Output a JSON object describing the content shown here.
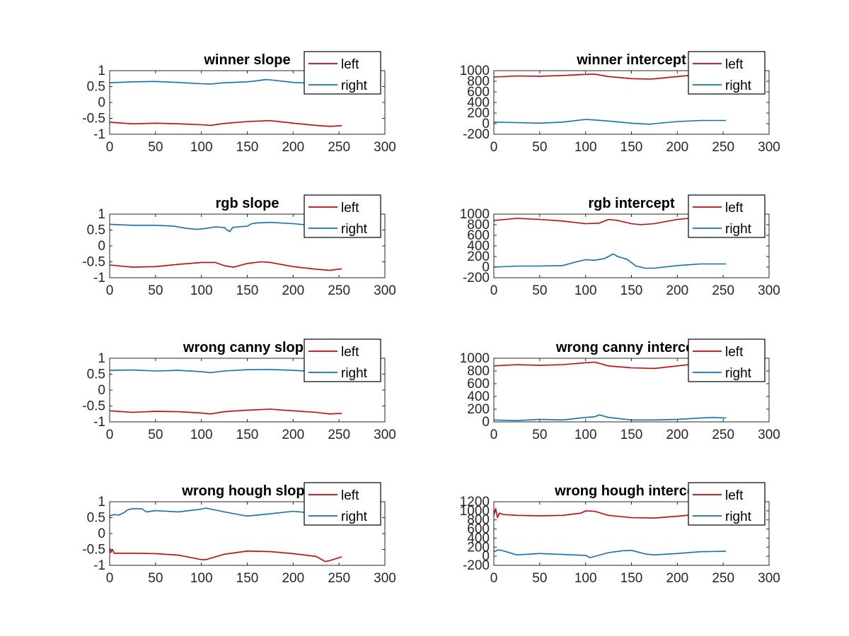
{
  "colors": {
    "left": "#d60000",
    "right": "#0a72bd",
    "axis": "#262626",
    "background": "#ffffff"
  },
  "chart_data": [
    {
      "type": "line",
      "title": "winner slope",
      "xlim": [
        0,
        300
      ],
      "ylim": [
        -1,
        1
      ],
      "xticks": [
        "0",
        "50",
        "100",
        "150",
        "200",
        "250",
        "300"
      ],
      "yticks": [
        "-1",
        "-0.5",
        "0",
        "0.5",
        "1"
      ],
      "legend": {
        "placement": "top-right",
        "entries": [
          "left",
          "right"
        ]
      },
      "grid": false,
      "series": [
        {
          "name": "left",
          "x": [
            0,
            25,
            50,
            75,
            100,
            110,
            125,
            150,
            175,
            200,
            225,
            240,
            253
          ],
          "y": [
            -0.62,
            -0.67,
            -0.65,
            -0.67,
            -0.7,
            -0.72,
            -0.66,
            -0.6,
            -0.57,
            -0.65,
            -0.72,
            -0.75,
            -0.73
          ]
        },
        {
          "name": "right",
          "x": [
            0,
            25,
            50,
            75,
            100,
            110,
            125,
            150,
            160,
            170,
            175,
            200,
            225,
            253
          ],
          "y": [
            0.62,
            0.65,
            0.66,
            0.63,
            0.59,
            0.58,
            0.62,
            0.65,
            0.68,
            0.72,
            0.71,
            0.63,
            0.6,
            0.62
          ]
        }
      ]
    },
    {
      "type": "line",
      "title": "winner intercept",
      "xlim": [
        0,
        300
      ],
      "ylim": [
        -200,
        1000
      ],
      "xticks": [
        "0",
        "50",
        "100",
        "150",
        "200",
        "250",
        "300"
      ],
      "yticks": [
        "-200",
        "0",
        "200",
        "400",
        "600",
        "800",
        "1000"
      ],
      "legend": {
        "placement": "top-right",
        "entries": [
          "left",
          "right"
        ]
      },
      "grid": false,
      "series": [
        {
          "name": "left",
          "x": [
            0,
            25,
            50,
            75,
            100,
            110,
            125,
            150,
            170,
            175,
            200,
            225,
            253
          ],
          "y": [
            880,
            900,
            895,
            910,
            930,
            935,
            890,
            850,
            840,
            845,
            890,
            930,
            940
          ]
        },
        {
          "name": "right",
          "x": [
            0,
            25,
            50,
            75,
            100,
            110,
            125,
            150,
            170,
            175,
            200,
            225,
            253
          ],
          "y": [
            30,
            20,
            10,
            30,
            80,
            70,
            50,
            10,
            -10,
            0,
            40,
            60,
            60
          ]
        }
      ]
    },
    {
      "type": "line",
      "title": "rgb slope",
      "xlim": [
        0,
        300
      ],
      "ylim": [
        -1,
        1
      ],
      "xticks": [
        "0",
        "50",
        "100",
        "150",
        "200",
        "250",
        "300"
      ],
      "yticks": [
        "-1",
        "-0.5",
        "0",
        "0.5",
        "1"
      ],
      "legend": {
        "placement": "top-right",
        "entries": [
          "left",
          "right"
        ]
      },
      "grid": false,
      "series": [
        {
          "name": "left",
          "x": [
            0,
            25,
            50,
            75,
            100,
            115,
            125,
            135,
            150,
            165,
            175,
            200,
            225,
            240,
            253
          ],
          "y": [
            -0.6,
            -0.67,
            -0.65,
            -0.58,
            -0.52,
            -0.52,
            -0.62,
            -0.67,
            -0.55,
            -0.5,
            -0.52,
            -0.65,
            -0.73,
            -0.77,
            -0.72
          ]
        },
        {
          "name": "right",
          "x": [
            0,
            25,
            50,
            70,
            85,
            95,
            105,
            115,
            125,
            128,
            131,
            134,
            140,
            150,
            155,
            160,
            175,
            200,
            225,
            253
          ],
          "y": [
            0.68,
            0.65,
            0.65,
            0.62,
            0.55,
            0.52,
            0.55,
            0.6,
            0.58,
            0.5,
            0.45,
            0.58,
            0.6,
            0.62,
            0.7,
            0.72,
            0.74,
            0.7,
            0.63,
            0.65
          ]
        }
      ]
    },
    {
      "type": "line",
      "title": "rgb intercept",
      "xlim": [
        0,
        300
      ],
      "ylim": [
        -200,
        1000
      ],
      "xticks": [
        "0",
        "50",
        "100",
        "150",
        "200",
        "250",
        "300"
      ],
      "yticks": [
        "-200",
        "0",
        "200",
        "400",
        "600",
        "800",
        "1000"
      ],
      "legend": {
        "placement": "top-right",
        "entries": [
          "left",
          "right"
        ]
      },
      "grid": false,
      "series": [
        {
          "name": "left",
          "x": [
            0,
            25,
            50,
            75,
            100,
            115,
            125,
            135,
            150,
            160,
            175,
            200,
            225,
            240,
            253
          ],
          "y": [
            880,
            920,
            900,
            870,
            820,
            830,
            900,
            880,
            820,
            800,
            820,
            900,
            940,
            950,
            930
          ]
        },
        {
          "name": "right",
          "x": [
            0,
            25,
            50,
            75,
            90,
            100,
            110,
            120,
            125,
            130,
            135,
            145,
            155,
            165,
            175,
            200,
            225,
            253
          ],
          "y": [
            0,
            20,
            20,
            30,
            100,
            140,
            130,
            160,
            200,
            250,
            200,
            150,
            20,
            -20,
            -20,
            30,
            60,
            60
          ]
        }
      ]
    },
    {
      "type": "line",
      "title": "wrong canny slope",
      "xlim": [
        0,
        300
      ],
      "ylim": [
        -1,
        1
      ],
      "xticks": [
        "0",
        "50",
        "100",
        "150",
        "200",
        "250",
        "300"
      ],
      "yticks": [
        "-1",
        "-0.5",
        "0",
        "0.5",
        "1"
      ],
      "legend": {
        "placement": "top-right",
        "entries": [
          "left",
          "right"
        ]
      },
      "grid": false,
      "series": [
        {
          "name": "left",
          "x": [
            0,
            25,
            50,
            75,
            100,
            110,
            125,
            150,
            175,
            200,
            225,
            240,
            253
          ],
          "y": [
            -0.65,
            -0.7,
            -0.67,
            -0.68,
            -0.72,
            -0.75,
            -0.68,
            -0.63,
            -0.6,
            -0.65,
            -0.7,
            -0.75,
            -0.73
          ]
        },
        {
          "name": "right",
          "x": [
            0,
            25,
            50,
            75,
            100,
            110,
            125,
            150,
            175,
            200,
            225,
            253
          ],
          "y": [
            0.62,
            0.63,
            0.6,
            0.62,
            0.58,
            0.55,
            0.6,
            0.64,
            0.65,
            0.62,
            0.58,
            0.58
          ]
        }
      ]
    },
    {
      "type": "line",
      "title": "wrong canny intercept",
      "xlim": [
        0,
        300
      ],
      "ylim": [
        0,
        1000
      ],
      "xticks": [
        "0",
        "50",
        "100",
        "150",
        "200",
        "250",
        "300"
      ],
      "yticks": [
        "0",
        "200",
        "400",
        "600",
        "800",
        "1000"
      ],
      "legend": {
        "placement": "top-right",
        "entries": [
          "left",
          "right"
        ]
      },
      "grid": false,
      "series": [
        {
          "name": "left",
          "x": [
            0,
            25,
            50,
            75,
            100,
            110,
            125,
            150,
            175,
            200,
            225,
            253
          ],
          "y": [
            880,
            900,
            890,
            900,
            930,
            940,
            880,
            850,
            840,
            880,
            920,
            930
          ]
        },
        {
          "name": "right",
          "x": [
            0,
            25,
            50,
            75,
            100,
            110,
            115,
            125,
            150,
            175,
            200,
            225,
            240,
            253
          ],
          "y": [
            30,
            20,
            40,
            30,
            70,
            80,
            110,
            70,
            30,
            30,
            40,
            60,
            70,
            60
          ]
        }
      ]
    },
    {
      "type": "line",
      "title": "wrong hough slope",
      "xlim": [
        0,
        300
      ],
      "ylim": [
        -1,
        1
      ],
      "xticks": [
        "0",
        "50",
        "100",
        "150",
        "200",
        "250",
        "300"
      ],
      "yticks": [
        "-1",
        "-0.5",
        "0",
        "0.5",
        "1"
      ],
      "legend": {
        "placement": "top-right",
        "entries": [
          "left",
          "right"
        ]
      },
      "grid": false,
      "series": [
        {
          "name": "left",
          "x": [
            0,
            1,
            3,
            5,
            25,
            50,
            75,
            100,
            105,
            125,
            150,
            175,
            200,
            225,
            235,
            240,
            253
          ],
          "y": [
            -0.45,
            -0.6,
            -0.5,
            -0.62,
            -0.62,
            -0.63,
            -0.68,
            -0.82,
            -0.82,
            -0.65,
            -0.55,
            -0.57,
            -0.63,
            -0.72,
            -0.88,
            -0.85,
            -0.73
          ]
        },
        {
          "name": "right",
          "x": [
            0,
            5,
            10,
            15,
            20,
            25,
            35,
            40,
            50,
            75,
            100,
            105,
            125,
            140,
            150,
            175,
            200,
            225,
            253
          ],
          "y": [
            0.55,
            0.6,
            0.58,
            0.65,
            0.75,
            0.78,
            0.78,
            0.68,
            0.72,
            0.68,
            0.77,
            0.8,
            0.68,
            0.6,
            0.55,
            0.62,
            0.7,
            0.63,
            0.6
          ]
        }
      ]
    },
    {
      "type": "line",
      "title": "wrong hough intercept",
      "xlim": [
        0,
        300
      ],
      "ylim": [
        -200,
        1200
      ],
      "xticks": [
        "0",
        "50",
        "100",
        "150",
        "200",
        "250",
        "300"
      ],
      "yticks": [
        "-200",
        "0",
        "200",
        "400",
        "600",
        "800",
        "1000",
        "1200"
      ],
      "legend": {
        "placement": "top-right",
        "entries": [
          "left",
          "right"
        ]
      },
      "grid": false,
      "series": [
        {
          "name": "left",
          "x": [
            0,
            2,
            4,
            6,
            10,
            25,
            50,
            75,
            95,
            100,
            110,
            125,
            150,
            175,
            200,
            225,
            253
          ],
          "y": [
            900,
            1050,
            850,
            950,
            920,
            900,
            890,
            900,
            950,
            1000,
            990,
            900,
            850,
            840,
            880,
            930,
            920
          ]
        },
        {
          "name": "right",
          "x": [
            0,
            5,
            10,
            25,
            50,
            75,
            100,
            105,
            125,
            140,
            150,
            165,
            175,
            200,
            225,
            253
          ],
          "y": [
            100,
            140,
            120,
            30,
            60,
            40,
            20,
            -30,
            80,
            120,
            130,
            50,
            30,
            60,
            100,
            110
          ]
        }
      ]
    }
  ]
}
